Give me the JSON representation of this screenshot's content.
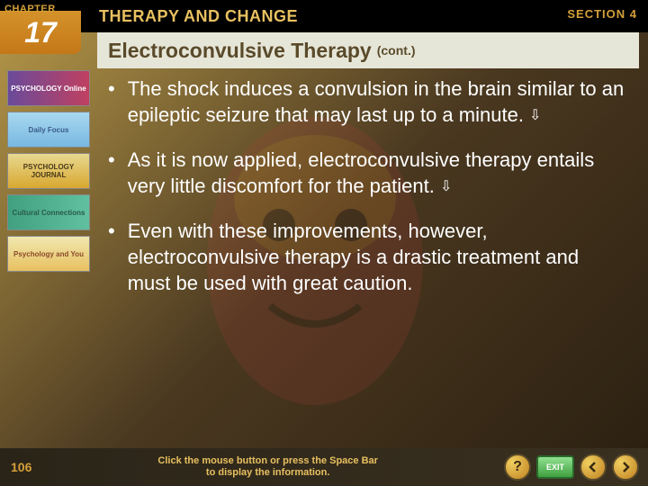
{
  "header": {
    "chapter_label": "CHAPTER",
    "chapter_number": "17",
    "title": "THERAPY AND CHANGE",
    "section_label": "SECTION 4"
  },
  "title": {
    "main": "Electroconvulsive Therapy",
    "cont": "(cont.)"
  },
  "sidebar": {
    "items": [
      {
        "label": "PSYCHOLOGY Online",
        "class": "online"
      },
      {
        "label": "Daily Focus",
        "class": "daily"
      },
      {
        "label": "PSYCHOLOGY JOURNAL",
        "class": "journal"
      },
      {
        "label": "Cultural Connections",
        "class": "cultural"
      },
      {
        "label": "Psychology and You",
        "class": "andyou"
      }
    ]
  },
  "bullets": [
    {
      "text": "The shock induces a convulsion in the brain similar to an epileptic seizure that may last up to a minute.",
      "has_arrow": true
    },
    {
      "text": "As it is now applied, electroconvulsive therapy entails very little discomfort for the patient.",
      "has_arrow": true
    },
    {
      "text": "Even with these improvements, however, electroconvulsive therapy is a drastic treatment and must be used with great caution.",
      "has_arrow": false
    }
  ],
  "footer": {
    "page_num": "106",
    "hint_line1": "Click the mouse button or press the Space Bar",
    "hint_line2": "to display the information.",
    "exit_label": "EXIT"
  },
  "colors": {
    "accent_gold": "#d4a03a",
    "title_bg": "#e6e6d8",
    "text_light": "#ffffff"
  }
}
